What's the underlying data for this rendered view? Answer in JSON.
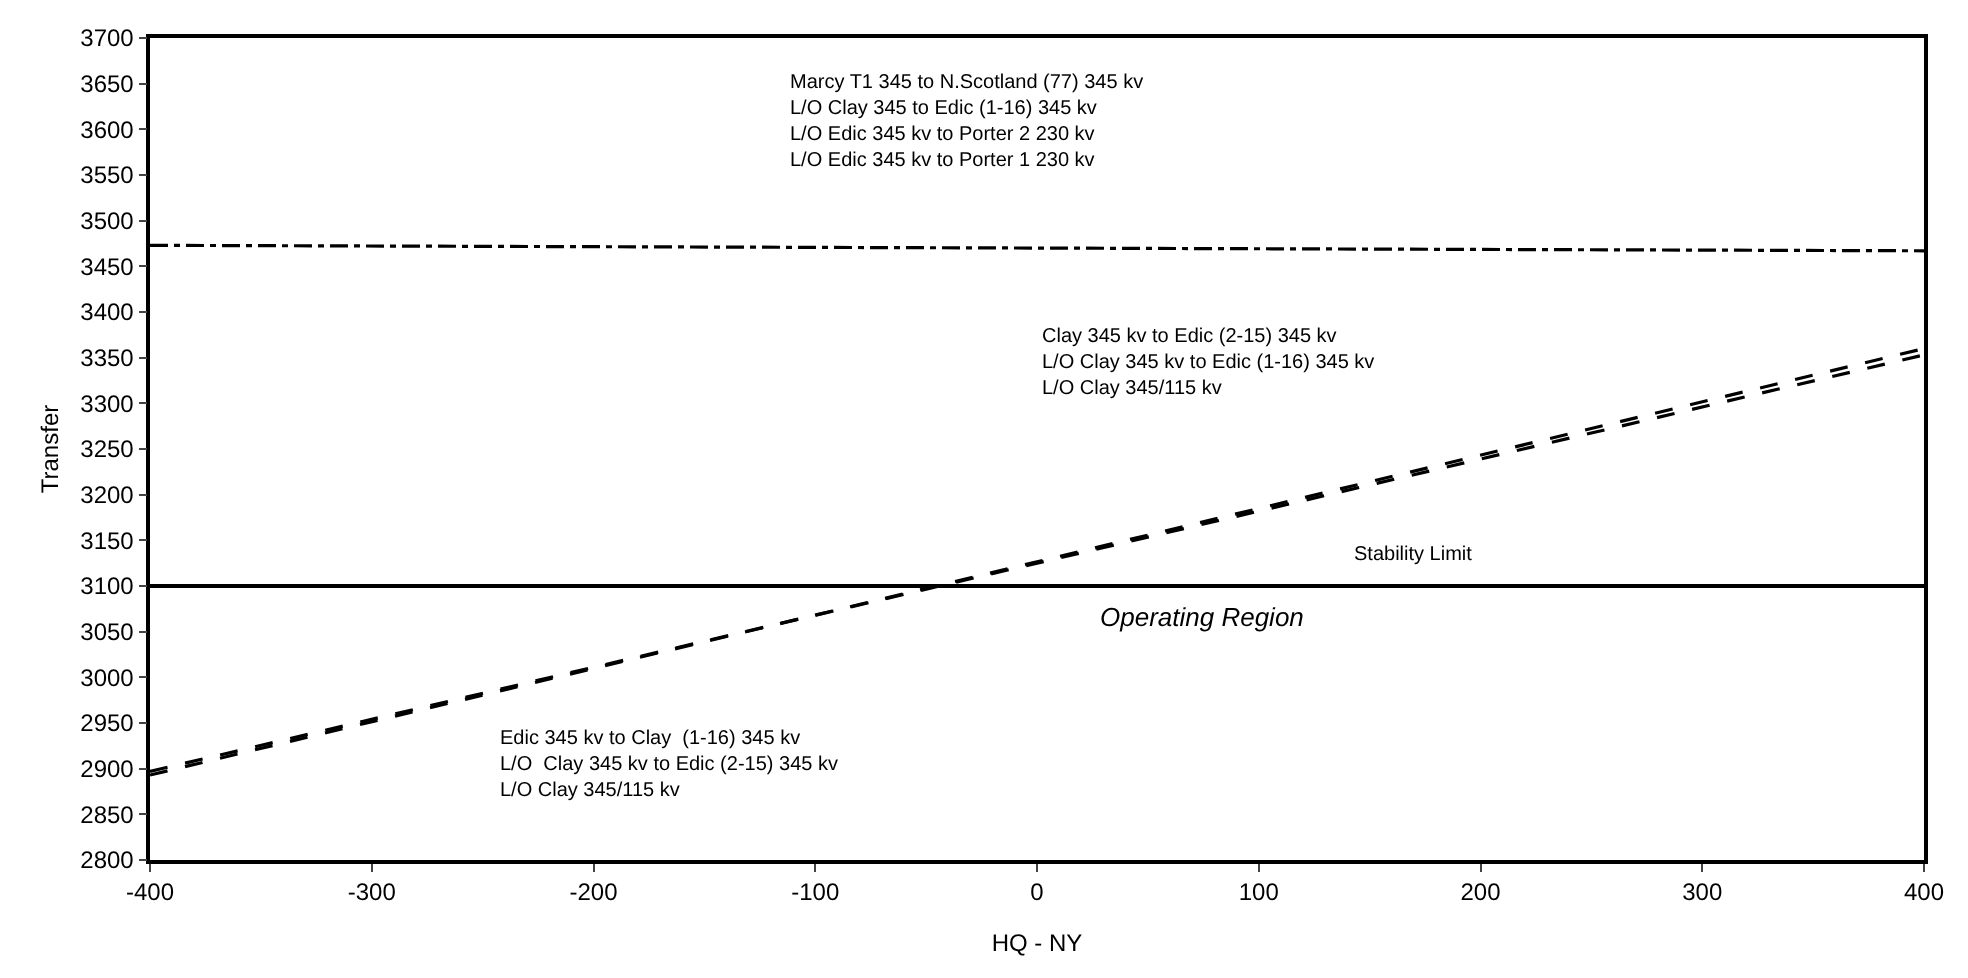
{
  "chart_data": {
    "type": "line",
    "xlabel": "HQ - NY",
    "ylabel": "Transfer",
    "x": [
      -400,
      400
    ],
    "series": [
      {
        "color": "#000000",
        "values": [
          3473,
          3467
        ],
        "line_style": "dashdot"
      },
      {
        "color": "#000000",
        "values": [
          2893,
          3360
        ],
        "line_style": "dashed"
      },
      {
        "color": "#000000",
        "values": [
          2897,
          3353
        ],
        "line_style": "dashed"
      }
    ],
    "xlim": [
      -400,
      400
    ],
    "xticks": [
      -400,
      -300,
      -200,
      -100,
      0,
      100,
      200,
      300,
      400
    ],
    "ylim": [
      2800,
      3700
    ],
    "yticks": [
      2800,
      2850,
      2900,
      2950,
      3000,
      3050,
      3100,
      3150,
      3200,
      3250,
      3300,
      3350,
      3400,
      3450,
      3500,
      3550,
      3600,
      3650,
      3700
    ],
    "ref_lines": [
      {
        "axis": "y",
        "value": 3100,
        "label": "Stability Limit",
        "color": "#000000",
        "line_style": "solid"
      }
    ],
    "annotations": [
      "Marcy T1 345 to N.Scotland (77) 345 kv\nL/O Clay 345 to Edic (1-16) 345 kv\nL/O Edic 345 kv to Porter 2 230 kv\nL/O Edic 345 kv to Porter 1 230 kv",
      "Clay 345 kv to Edic (2-15) 345 kv\nL/O Clay 345 kv to Edic (1-16) 345 kv\nL/O Clay 345/115 kv",
      "Edic 345 kv to Clay  (1-16) 345 kv\nL/O  Clay 345 kv to Edic (2-15) 345 kv\nL/O Clay 345/115 kv",
      "Operating Region"
    ]
  }
}
